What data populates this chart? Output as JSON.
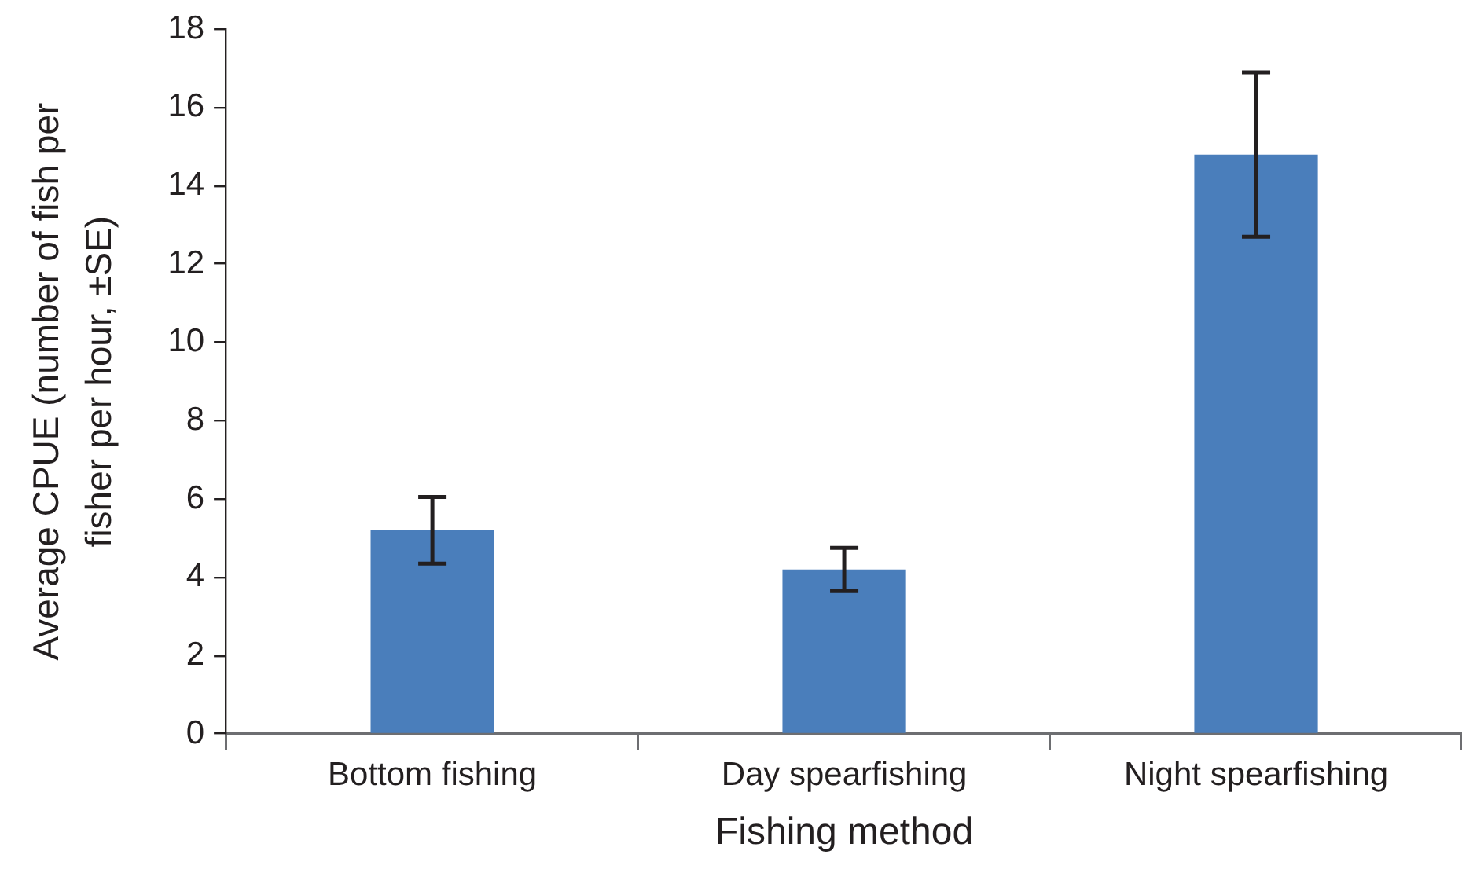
{
  "chart_data": {
    "type": "bar",
    "xlabel": "Fishing method",
    "ylabel": "Average CPUE (number of fish per fisher per hour, ±SE)",
    "categories": [
      "Bottom fishing",
      "Day spearfishing",
      "Night spearfishing"
    ],
    "values": [
      5.2,
      4.2,
      14.8
    ],
    "errors": [
      0.85,
      0.55,
      2.1
    ],
    "color": "#4a7ebb",
    "ylim": [
      0,
      18
    ],
    "yticks": [
      0,
      2,
      4,
      6,
      8,
      10,
      12,
      14,
      16,
      18
    ]
  }
}
